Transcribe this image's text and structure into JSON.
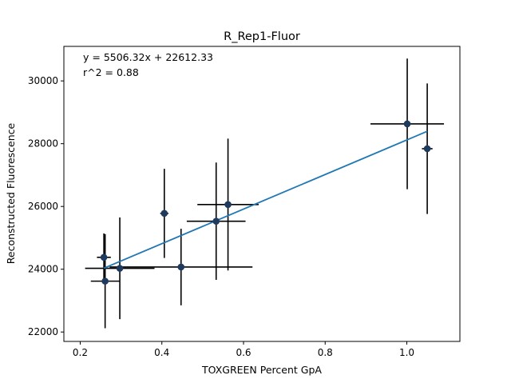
{
  "chart_data": {
    "type": "scatter",
    "title": "R_Rep1-Fluor",
    "xlabel": "TOXGREEN Percent GpA",
    "ylabel": "Reconstructed Fluorescence",
    "xlim": [
      0.16,
      1.13
    ],
    "ylim": [
      21700,
      31100
    ],
    "x_ticks": [
      0.2,
      0.4,
      0.6,
      0.8,
      1.0
    ],
    "x_tick_labels": [
      "0.2",
      "0.4",
      "0.6",
      "0.8",
      "1.0"
    ],
    "y_ticks": [
      22000,
      24000,
      26000,
      28000,
      30000
    ],
    "y_tick_labels": [
      "22000",
      "24000",
      "26000",
      "28000",
      "30000"
    ],
    "grid": false,
    "annotations": [
      "y = 5506.32x + 22612.33",
      "r^2 = 0.88"
    ],
    "fit": {
      "slope": 5506.32,
      "intercept": 22612.33,
      "r_squared": 0.88
    },
    "points": [
      {
        "x": 0.258,
        "y": 24380,
        "xerr": 0.017,
        "yerr": 760
      },
      {
        "x": 0.261,
        "y": 23620,
        "xerr": 0.035,
        "yerr": 1500
      },
      {
        "x": 0.297,
        "y": 24030,
        "xerr": 0.085,
        "yerr": 1620
      },
      {
        "x": 0.406,
        "y": 25780,
        "xerr": 0.01,
        "yerr": 1420
      },
      {
        "x": 0.447,
        "y": 24070,
        "xerr": 0.175,
        "yerr": 1220
      },
      {
        "x": 0.533,
        "y": 25530,
        "xerr": 0.072,
        "yerr": 1870
      },
      {
        "x": 0.562,
        "y": 26060,
        "xerr": 0.075,
        "yerr": 2100
      },
      {
        "x": 1.001,
        "y": 28630,
        "xerr": 0.09,
        "yerr": 2080
      },
      {
        "x": 1.05,
        "y": 27840,
        "xerr": 0.013,
        "yerr": 2080
      }
    ]
  },
  "colors": {
    "marker": "#1f3a5f",
    "errorbar": "#000000",
    "fit_line": "#1f77b4"
  }
}
